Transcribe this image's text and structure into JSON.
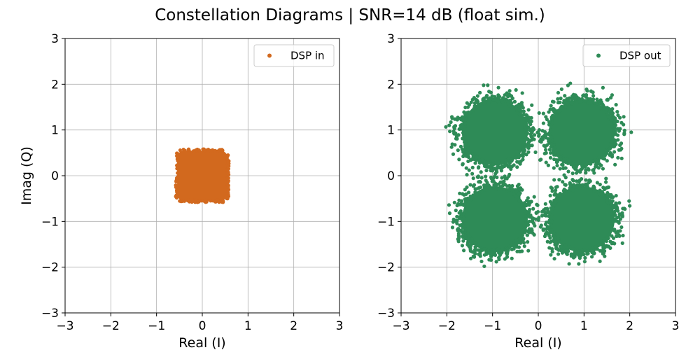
{
  "chart_data": [
    {
      "type": "scatter",
      "title": "Constellation Diagrams | SNR=14 dB (float sim.)",
      "xlabel": "Real (I)",
      "ylabel": "Imag (Q)",
      "xlim": [
        -3,
        3
      ],
      "ylim": [
        -3,
        3
      ],
      "xticks": [
        -3,
        -2,
        -1,
        0,
        1,
        2,
        3
      ],
      "yticks": [
        -3,
        -2,
        -1,
        0,
        1,
        2,
        3
      ],
      "grid": true,
      "legend_position": "top-right",
      "series": [
        {
          "name": "DSP in",
          "color": "#d2691e",
          "clusters": [
            {
              "center": [
                0,
                0
              ],
              "shape": "rounded-square",
              "extent": [
                -0.55,
                0.55
              ]
            }
          ]
        }
      ]
    },
    {
      "type": "scatter",
      "xlabel": "Real (I)",
      "ylabel": "",
      "xlim": [
        -3,
        3
      ],
      "ylim": [
        -3,
        3
      ],
      "xticks": [
        -3,
        -2,
        -1,
        0,
        1,
        2,
        3
      ],
      "yticks": [
        -3,
        -2,
        -1,
        0,
        1,
        2,
        3
      ],
      "grid": true,
      "legend_position": "top-right",
      "series": [
        {
          "name": "DSP out",
          "color": "#2e8b57",
          "clusters": [
            {
              "center": [
                -0.95,
                0.95
              ],
              "core_radius": 0.72,
              "max_radius": 1.0
            },
            {
              "center": [
                0.95,
                0.95
              ],
              "core_radius": 0.72,
              "max_radius": 1.0
            },
            {
              "center": [
                -0.95,
                -0.95
              ],
              "core_radius": 0.72,
              "max_radius": 1.0
            },
            {
              "center": [
                0.95,
                -0.95
              ],
              "core_radius": 0.72,
              "max_radius": 1.0
            }
          ]
        }
      ]
    }
  ]
}
